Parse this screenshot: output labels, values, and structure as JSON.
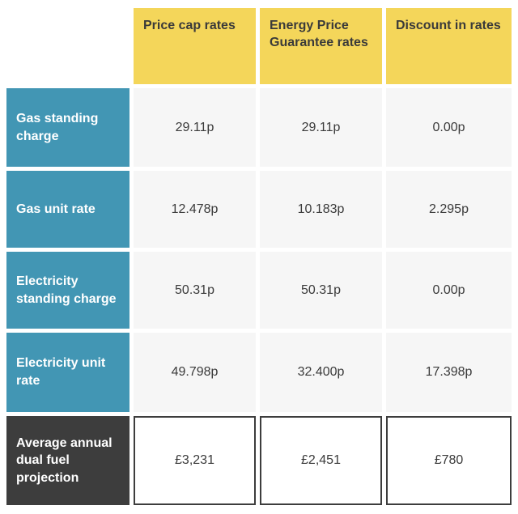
{
  "table": {
    "columns": [
      {
        "label": "Price cap rates"
      },
      {
        "label": "Energy Price Guarantee rates"
      },
      {
        "label": "Discount in rates"
      }
    ],
    "rows": [
      {
        "label": "Gas standing charge",
        "values": [
          "29.11p",
          "29.11p",
          "0.00p"
        ]
      },
      {
        "label": "Gas unit rate",
        "values": [
          "12.478p",
          "10.183p",
          "2.295p"
        ]
      },
      {
        "label": "Electricity standing charge",
        "values": [
          "50.31p",
          "50.31p",
          "0.00p"
        ]
      },
      {
        "label": "Electricity unit rate",
        "values": [
          "49.798p",
          "32.400p",
          "17.398p"
        ]
      },
      {
        "label": "Average annual dual fuel projection",
        "values": [
          "£3,231",
          "£2,451",
          "£780"
        ]
      }
    ],
    "colors": {
      "column_header_bg": "#f4d65a",
      "row_header_bg": "#4296b4",
      "total_row_header_bg": "#3d3d3d",
      "data_cell_bg": "#f6f6f6",
      "total_cell_bg": "#ffffff",
      "total_cell_border": "#3d3d3d",
      "text_dark": "#3a3a3a",
      "text_light": "#ffffff"
    }
  },
  "chart_data": {
    "type": "table",
    "title": "",
    "columns": [
      "",
      "Price cap rates",
      "Energy Price Guarantee rates",
      "Discount in rates"
    ],
    "rows": [
      [
        "Gas standing charge",
        "29.11p",
        "29.11p",
        "0.00p"
      ],
      [
        "Gas unit rate",
        "12.478p",
        "10.183p",
        "2.295p"
      ],
      [
        "Electricity standing charge",
        "50.31p",
        "50.31p",
        "0.00p"
      ],
      [
        "Electricity unit rate",
        "49.798p",
        "32.400p",
        "17.398p"
      ],
      [
        "Average annual dual fuel projection",
        "£3,231",
        "£2,451",
        "£780"
      ]
    ]
  }
}
